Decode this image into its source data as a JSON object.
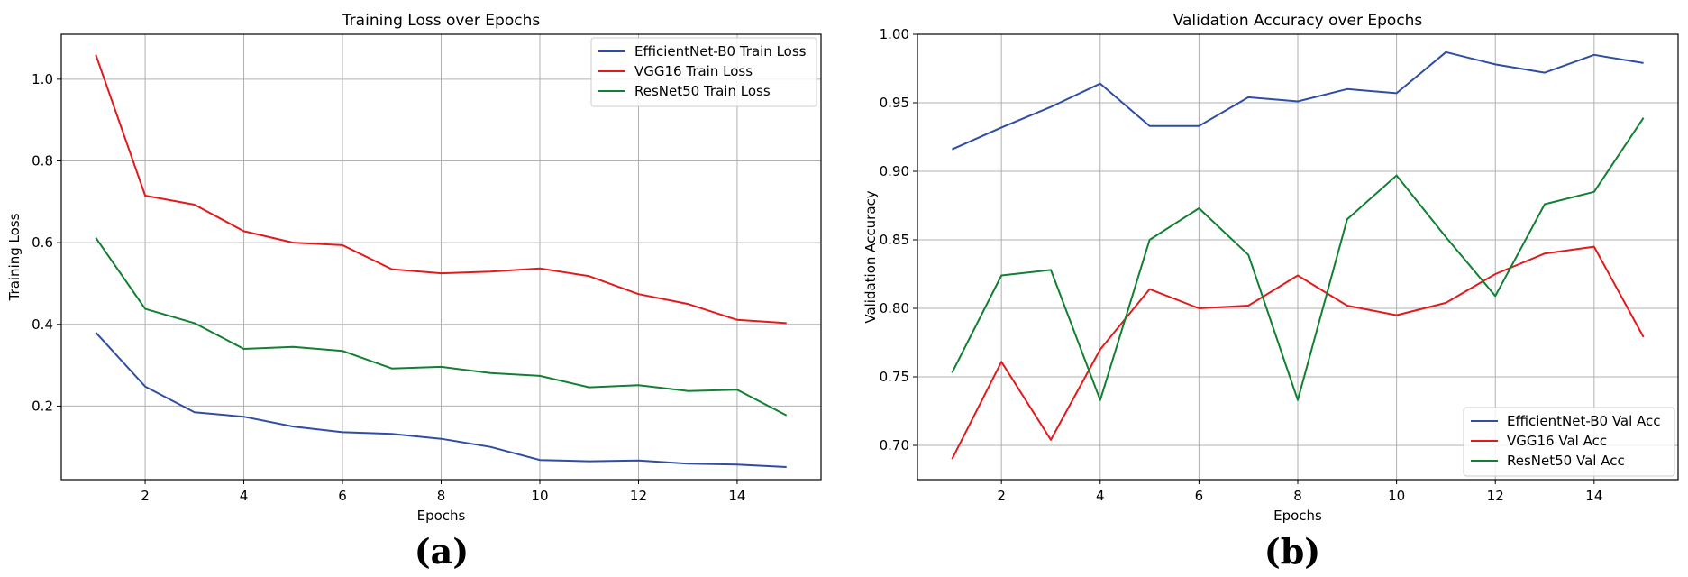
{
  "chart_data": [
    {
      "type": "line",
      "title": "Training Loss over Epochs",
      "xlabel": "Epochs",
      "ylabel": "Training Loss",
      "panel_label": "(a)",
      "x": [
        1,
        2,
        3,
        4,
        5,
        6,
        7,
        8,
        9,
        10,
        11,
        12,
        13,
        14,
        15
      ],
      "xlim": [
        0.3,
        15.7
      ],
      "ylim": [
        0.02,
        1.11
      ],
      "xticks": [
        2,
        4,
        6,
        8,
        10,
        12,
        14
      ],
      "xtick_labels": [
        "2",
        "4",
        "6",
        "8",
        "10",
        "12",
        "14"
      ],
      "yticks": [
        0.2,
        0.4,
        0.6,
        0.8,
        1.0
      ],
      "ytick_labels": [
        "0.2",
        "0.4",
        "0.6",
        "0.8",
        "1.0"
      ],
      "grid": true,
      "legend_position": "top-right",
      "series": [
        {
          "name": "EfficientNet-B0 Train Loss",
          "color": "#2f4ea3",
          "values": [
            0.38,
            0.248,
            0.185,
            0.174,
            0.15,
            0.136,
            0.132,
            0.12,
            0.1,
            0.068,
            0.065,
            0.067,
            0.059,
            0.057,
            0.051
          ]
        },
        {
          "name": "VGG16 Train Loss",
          "color": "#e31a1c",
          "values": [
            1.06,
            0.715,
            0.693,
            0.628,
            0.6,
            0.594,
            0.535,
            0.525,
            0.529,
            0.537,
            0.518,
            0.474,
            0.45,
            0.411,
            0.403
          ]
        },
        {
          "name": "ResNet50 Train Loss",
          "color": "#118033",
          "values": [
            0.612,
            0.438,
            0.403,
            0.34,
            0.345,
            0.335,
            0.292,
            0.296,
            0.281,
            0.274,
            0.246,
            0.251,
            0.237,
            0.24,
            0.177
          ]
        }
      ]
    },
    {
      "type": "line",
      "title": "Validation Accuracy over Epochs",
      "xlabel": "Epochs",
      "ylabel": "Validation Accuracy",
      "panel_label": "(b)",
      "x": [
        1,
        2,
        3,
        4,
        5,
        6,
        7,
        8,
        9,
        10,
        11,
        12,
        13,
        14,
        15
      ],
      "xlim": [
        0.3,
        15.7
      ],
      "ylim": [
        0.675,
        1.0
      ],
      "xticks": [
        2,
        4,
        6,
        8,
        10,
        12,
        14
      ],
      "xtick_labels": [
        "2",
        "4",
        "6",
        "8",
        "10",
        "12",
        "14"
      ],
      "yticks": [
        0.7,
        0.75,
        0.8,
        0.85,
        0.9,
        0.95,
        1.0
      ],
      "ytick_labels": [
        "0.70",
        "0.75",
        "0.80",
        "0.85",
        "0.90",
        "0.95",
        "1.00"
      ],
      "grid": true,
      "legend_position": "bottom-right",
      "series": [
        {
          "name": "EfficientNet-B0 Val Acc",
          "color": "#2f4ea3",
          "values": [
            0.916,
            0.932,
            0.947,
            0.964,
            0.933,
            0.933,
            0.954,
            0.951,
            0.96,
            0.957,
            0.987,
            0.978,
            0.972,
            0.985,
            0.979
          ]
        },
        {
          "name": "VGG16 Val Acc",
          "color": "#e31a1c",
          "values": [
            0.69,
            0.761,
            0.704,
            0.77,
            0.814,
            0.8,
            0.802,
            0.824,
            0.802,
            0.795,
            0.804,
            0.825,
            0.84,
            0.845,
            0.779
          ]
        },
        {
          "name": "ResNet50 Val Acc",
          "color": "#118033",
          "values": [
            0.753,
            0.824,
            0.828,
            0.733,
            0.85,
            0.873,
            0.839,
            0.733,
            0.865,
            0.897,
            0.852,
            0.809,
            0.876,
            0.885,
            0.939
          ]
        }
      ]
    }
  ]
}
